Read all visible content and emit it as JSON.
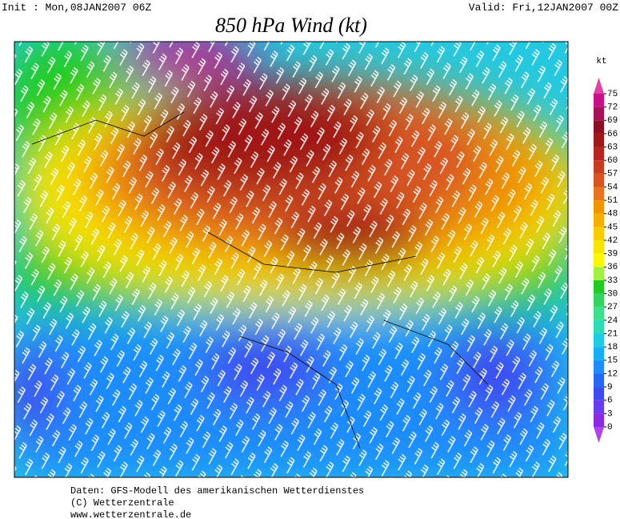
{
  "header": {
    "init": "Init : Mon,08JAN2007 06Z",
    "valid": "Valid: Fri,12JAN2007 00Z",
    "title": "850 hPa Wind (kt)"
  },
  "colorbar": {
    "unit": "kt",
    "levels": [
      0,
      3,
      6,
      9,
      12,
      15,
      18,
      21,
      24,
      27,
      30,
      33,
      36,
      39,
      42,
      45,
      48,
      51,
      54,
      57,
      60,
      63,
      66,
      69,
      72,
      75
    ],
    "colors": [
      "#8a2be2",
      "#6a3cf0",
      "#3c4cf0",
      "#2468f4",
      "#1e8cff",
      "#14b0f4",
      "#1ecce4",
      "#2cdcb8",
      "#3ce08c",
      "#34d460",
      "#20cc24",
      "#a4f040",
      "#f8f800",
      "#f8e400",
      "#f8cc00",
      "#f8b000",
      "#f09400",
      "#e87420",
      "#d85420",
      "#c83c20",
      "#b82420",
      "#a01818",
      "#8c1020",
      "#a81058",
      "#c81088"
    ],
    "under_color": "#b040f0",
    "over_color": "#e040a8"
  },
  "footer": {
    "lines": [
      "Daten: GFS-Modell des amerikanischen Wetterdienstes",
      "(C) Wetterzentrale",
      "www.wetterzentrale.de"
    ]
  }
}
